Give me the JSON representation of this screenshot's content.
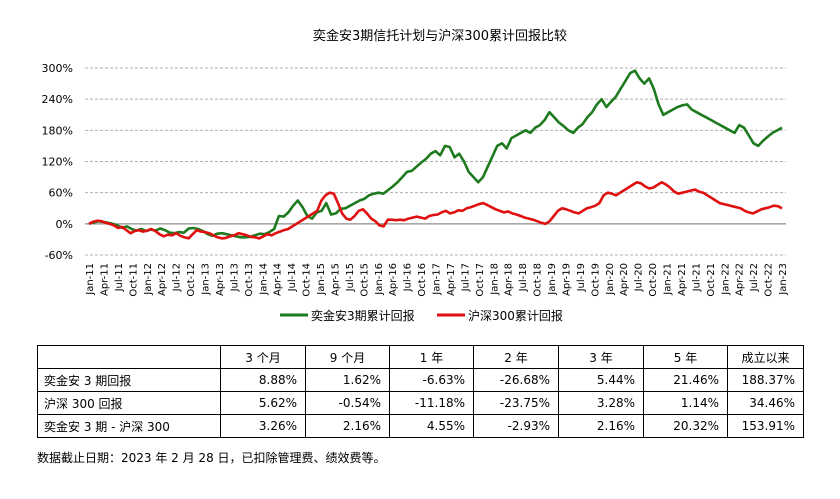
{
  "chart_data": {
    "type": "line",
    "title": "奕金安3期信托计划与沪深300累计回报比较",
    "ylim": [
      -60,
      300
    ],
    "yticks": [
      "-60%",
      "0%",
      "60%",
      "120%",
      "180%",
      "240%",
      "300%"
    ],
    "ytick_values": [
      -60,
      0,
      60,
      120,
      180,
      240,
      300
    ],
    "x_labels": [
      "Jan-11",
      "Apr-11",
      "Jul-11",
      "Oct-11",
      "Jan-12",
      "Apr-12",
      "Jul-12",
      "Oct-12",
      "Jan-13",
      "Apr-13",
      "Jul-13",
      "Oct-13",
      "Jan-14",
      "Apr-14",
      "Jul-14",
      "Oct-14",
      "Jan-15",
      "Apr-15",
      "Jul-15",
      "Oct-15",
      "Jan-16",
      "Apr-16",
      "Jul-16",
      "Oct-16",
      "Jan-17",
      "Apr-17",
      "Jul-17",
      "Oct-17",
      "Jan-18",
      "Apr-18",
      "Jul-18",
      "Oct-18",
      "Jan-19",
      "Apr-19",
      "Jul-19",
      "Oct-19",
      "Jan-20",
      "Apr-20",
      "Jul-20",
      "Oct-20",
      "Jan-21",
      "Apr-21",
      "Jul-21",
      "Oct-21",
      "Jan-22",
      "Apr-22",
      "Jul-22",
      "Oct-22",
      "Jan-23"
    ],
    "grid": true,
    "legend_position": "bottom",
    "series": [
      {
        "name": "奕金安3期累计回报",
        "color": "#1e7a1e",
        "values": [
          0,
          3,
          5,
          4,
          2,
          0,
          -3,
          -8,
          -5,
          -10,
          -13,
          -10,
          -14,
          -11,
          -13,
          -9,
          -12,
          -17,
          -18,
          -16,
          -17,
          -9,
          -8,
          -10,
          -14,
          -20,
          -23,
          -19,
          -18,
          -20,
          -22,
          -24,
          -26,
          -26,
          -25,
          -22,
          -19,
          -20,
          -16,
          -10,
          15,
          14,
          22,
          35,
          45,
          32,
          15,
          10,
          22,
          25,
          40,
          18,
          20,
          29,
          30,
          35,
          40,
          45,
          48,
          55,
          58,
          60,
          58,
          65,
          72,
          80,
          90,
          100,
          102,
          110,
          118,
          125,
          135,
          140,
          132,
          150,
          148,
          128,
          135,
          120,
          100,
          90,
          80,
          90,
          110,
          130,
          150,
          155,
          145,
          165,
          170,
          175,
          180,
          175,
          185,
          190,
          200,
          215,
          205,
          195,
          188,
          180,
          175,
          185,
          192,
          205,
          215,
          230,
          240,
          225,
          235,
          245,
          260,
          275,
          290,
          295,
          280,
          270,
          280,
          260,
          230,
          210,
          215,
          220,
          225,
          228,
          230,
          220,
          215,
          210,
          205,
          200,
          195,
          190,
          185,
          180,
          175,
          190,
          185,
          170,
          155,
          150,
          160,
          168,
          175,
          180,
          185
        ]
      },
      {
        "name": "沪深300累计回报",
        "color": "#e01010",
        "values": [
          0,
          4,
          6,
          5,
          2,
          0,
          -3,
          -8,
          -6,
          -12,
          -18,
          -14,
          -12,
          -15,
          -13,
          -10,
          -14,
          -20,
          -24,
          -21,
          -22,
          -18,
          -23,
          -26,
          -28,
          -20,
          -12,
          -15,
          -16,
          -18,
          -22,
          -26,
          -28,
          -27,
          -24,
          -22,
          -18,
          -20,
          -22,
          -25,
          -26,
          -28,
          -24,
          -20,
          -22,
          -18,
          -15,
          -12,
          -10,
          -5,
          0,
          5,
          10,
          15,
          20,
          25,
          45,
          55,
          60,
          58,
          40,
          20,
          10,
          8,
          15,
          25,
          28,
          20,
          10,
          5,
          -3,
          -5,
          8,
          8,
          7,
          8,
          7,
          10,
          12,
          14,
          12,
          10,
          15,
          17,
          18,
          22,
          25,
          20,
          22,
          26,
          25,
          30,
          32,
          35,
          38,
          40,
          36,
          32,
          28,
          25,
          22,
          24,
          20,
          18,
          15,
          12,
          10,
          8,
          5,
          2,
          0,
          5,
          15,
          25,
          30,
          28,
          25,
          22,
          20,
          25,
          30,
          32,
          35,
          40,
          55,
          60,
          58,
          55,
          60,
          65,
          70,
          75,
          80,
          78,
          72,
          68,
          70,
          75,
          80,
          76,
          70,
          62,
          58,
          60,
          62,
          64,
          66,
          62,
          60,
          55,
          50,
          45,
          40,
          38,
          36,
          34,
          32,
          30,
          25,
          22,
          20,
          24,
          28,
          30,
          32,
          35,
          34,
          30
        ]
      }
    ]
  },
  "table": {
    "headers": [
      "",
      "3 个月",
      "9 个月",
      "1 年",
      "2 年",
      "3 年",
      "5 年",
      "成立以来"
    ],
    "rows": [
      [
        "奕金安 3 期回报",
        "8.88%",
        "1.62%",
        "-6.63%",
        "-26.68%",
        "5.44%",
        "21.46%",
        "188.37%"
      ],
      [
        "沪深 300 回报",
        "5.62%",
        "-0.54%",
        "-11.18%",
        "-23.75%",
        "3.28%",
        "1.14%",
        "34.46%"
      ],
      [
        "奕金安 3 期 - 沪深 300",
        "3.26%",
        "2.16%",
        "4.55%",
        "-2.93%",
        "2.16%",
        "20.32%",
        "153.91%"
      ]
    ]
  },
  "footnote": "数据截止日期：2023 年 2 月 28 日，已扣除管理费、绩效费等。"
}
